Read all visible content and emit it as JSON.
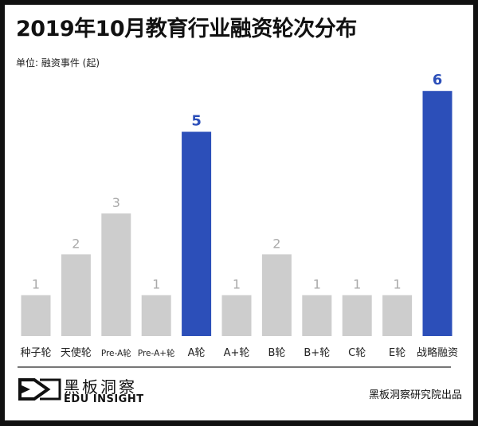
{
  "title": "2019年10月教育行业融资轮次分布",
  "unit": "单位: 融资事件 (起)",
  "logo": {
    "cn": "黑板洞察",
    "en": "EDU INSIGHT"
  },
  "source": "黑板洞察研究院出品",
  "chart_data": {
    "type": "bar",
    "title": "2019年10月教育行业融资轮次分布",
    "ylabel": "单位: 融资事件 (起)",
    "categories": [
      "种子轮",
      "天使轮",
      "Pre-A轮",
      "Pre-A+轮",
      "A轮",
      "A+轮",
      "B轮",
      "B+轮",
      "C轮",
      "E轮",
      "战略融资"
    ],
    "values": [
      1,
      2,
      3,
      1,
      5,
      1,
      2,
      1,
      1,
      1,
      6
    ],
    "highlight": [
      "A轮",
      "战略融资"
    ],
    "colors": {
      "default": "#cdcdcd",
      "highlight": "#2c4fb9",
      "label_default": "#aaaaaa",
      "label_highlight": "#2c4fb9"
    },
    "ylim": [
      0,
      6
    ],
    "grid": false
  }
}
